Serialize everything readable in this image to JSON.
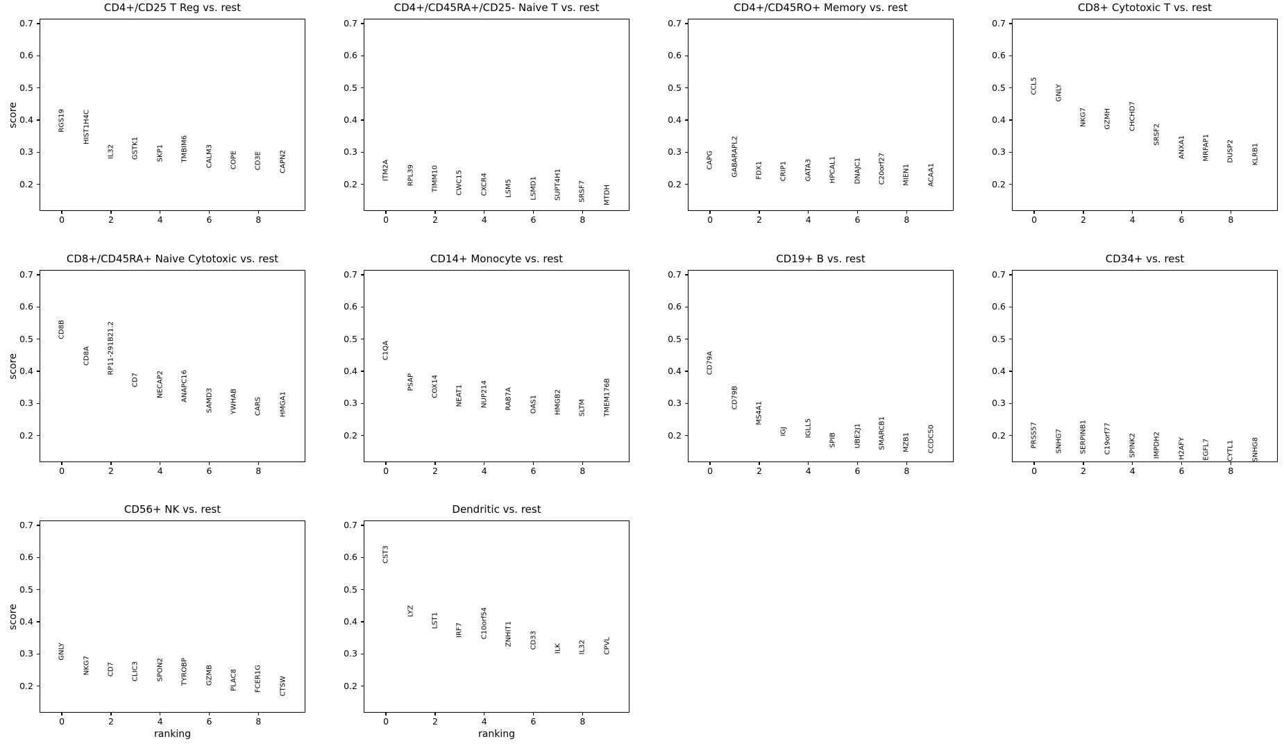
{
  "figure": {
    "background_color": "#ffffff",
    "text_color": "#000000",
    "spine_color": "#000000",
    "plots_per_row": 4,
    "shared_ylabel": "score",
    "shared_xlabel": "ranking"
  },
  "chart_data": [
    {
      "type": "scatter",
      "title": "CD4+/CD25 T Reg vs. rest",
      "ylabel": "score",
      "xlabel": "",
      "x": [
        0,
        1,
        2,
        3,
        4,
        5,
        6,
        7,
        8,
        9
      ],
      "gene_labels": [
        "RGS19",
        "HIST1H4C",
        "IL32",
        "GSTK1",
        "SKP1",
        "TMBIM6",
        "CALM3",
        "COPE",
        "CD3E",
        "CAPN2"
      ],
      "scores": [
        0.358,
        0.32,
        0.275,
        0.272,
        0.266,
        0.262,
        0.245,
        0.241,
        0.239,
        0.23
      ],
      "xlim": [
        -0.88,
        9.94
      ],
      "ylim": [
        0.115,
        0.713
      ],
      "xticks": [
        0,
        2,
        4,
        6,
        8
      ],
      "yticks": [
        0.7,
        0.6,
        0.5,
        0.4,
        0.3,
        0.2
      ],
      "grid": false,
      "legend": "none"
    },
    {
      "type": "scatter",
      "title": "CD4+/CD45RA+/CD25- Naive T vs. rest",
      "ylabel": "",
      "xlabel": "",
      "x": [
        0,
        1,
        2,
        3,
        4,
        5,
        6,
        7,
        8,
        9
      ],
      "gene_labels": [
        "ITM2A",
        "RPL39",
        "TIMM10",
        "CWC15",
        "CXCR4",
        "LSM5",
        "LSMD1",
        "SUPT4H1",
        "SRSF7",
        "MTDH"
      ],
      "scores": [
        0.205,
        0.19,
        0.17,
        0.162,
        0.159,
        0.155,
        0.147,
        0.145,
        0.139,
        0.131
      ],
      "xlim": [
        -0.88,
        9.94
      ],
      "ylim": [
        0.115,
        0.713
      ],
      "xticks": [
        0,
        2,
        4,
        6,
        8
      ],
      "yticks": [
        0.7,
        0.6,
        0.5,
        0.4,
        0.3,
        0.2
      ],
      "grid": false,
      "legend": "none"
    },
    {
      "type": "scatter",
      "title": "CD4+/CD45RO+ Memory vs. rest",
      "ylabel": "",
      "xlabel": "",
      "x": [
        0,
        1,
        2,
        3,
        4,
        5,
        6,
        7,
        8,
        9
      ],
      "gene_labels": [
        "CAPG",
        "GABARAPL2",
        "FDX1",
        "CRIP1",
        "GATA3",
        "HPCAL1",
        "DNAJC1",
        "C20orf27",
        "MIEN1",
        "ACAA1"
      ],
      "scores": [
        0.242,
        0.217,
        0.21,
        0.206,
        0.204,
        0.198,
        0.197,
        0.195,
        0.191,
        0.189
      ],
      "xlim": [
        -0.88,
        9.94
      ],
      "ylim": [
        0.115,
        0.713
      ],
      "xticks": [
        0,
        2,
        4,
        6,
        8
      ],
      "yticks": [
        0.7,
        0.6,
        0.5,
        0.4,
        0.3,
        0.2
      ],
      "grid": false,
      "legend": "none"
    },
    {
      "type": "scatter",
      "title": "CD8+ Cytotoxic T vs. rest",
      "ylabel": "",
      "xlabel": "",
      "x": [
        0,
        1,
        2,
        3,
        4,
        5,
        6,
        7,
        8,
        9
      ],
      "gene_labels": [
        "CCL5",
        "GNLY",
        "NKG7",
        "GZMH",
        "CHCHD7",
        "SRSF2",
        "ANXA1",
        "MRFAP1",
        "DUSP2",
        "KLRB1"
      ],
      "scores": [
        0.473,
        0.453,
        0.373,
        0.365,
        0.362,
        0.317,
        0.273,
        0.266,
        0.263,
        0.254
      ],
      "xlim": [
        -0.88,
        9.94
      ],
      "ylim": [
        0.115,
        0.713
      ],
      "xticks": [
        0,
        2,
        4,
        6,
        8
      ],
      "yticks": [
        0.7,
        0.6,
        0.5,
        0.4,
        0.3,
        0.2
      ],
      "grid": false,
      "legend": "none"
    },
    {
      "type": "scatter",
      "title": "CD8+/CD45RA+ Naive Cytotoxic vs. rest",
      "ylabel": "score",
      "xlabel": "",
      "x": [
        0,
        1,
        2,
        3,
        4,
        5,
        6,
        7,
        8,
        9
      ],
      "gene_labels": [
        "CD8B",
        "CD8A",
        "RP11-291B21.2",
        "CD7",
        "NECAP2",
        "ANAPC16",
        "SAMD3",
        "YWHAB",
        "CARS",
        "HMGA1"
      ],
      "scores": [
        0.495,
        0.414,
        0.384,
        0.347,
        0.312,
        0.298,
        0.267,
        0.262,
        0.257,
        0.254
      ],
      "xlim": [
        -0.88,
        9.94
      ],
      "ylim": [
        0.115,
        0.713
      ],
      "xticks": [
        0,
        2,
        4,
        6,
        8
      ],
      "yticks": [
        0.7,
        0.6,
        0.5,
        0.4,
        0.3,
        0.2
      ],
      "grid": false,
      "legend": "none"
    },
    {
      "type": "scatter",
      "title": "CD14+ Monocyte vs. rest",
      "ylabel": "",
      "xlabel": "",
      "x": [
        0,
        1,
        2,
        3,
        4,
        5,
        6,
        7,
        8,
        9
      ],
      "gene_labels": [
        "C1QA",
        "PSAP",
        "COX14",
        "NEAT1",
        "NUP214",
        "RAB7A",
        "OAS1",
        "HMGB2",
        "SLTM",
        "TMEM176B"
      ],
      "scores": [
        0.431,
        0.334,
        0.312,
        0.285,
        0.281,
        0.274,
        0.263,
        0.259,
        0.255,
        0.253
      ],
      "xlim": [
        -0.88,
        9.94
      ],
      "ylim": [
        0.115,
        0.713
      ],
      "xticks": [
        0,
        2,
        4,
        6,
        8
      ],
      "yticks": [
        0.7,
        0.6,
        0.5,
        0.4,
        0.3,
        0.2
      ],
      "grid": false,
      "legend": "none"
    },
    {
      "type": "scatter",
      "title": "CD19+ B vs. rest",
      "ylabel": "",
      "xlabel": "",
      "x": [
        0,
        1,
        2,
        3,
        4,
        5,
        6,
        7,
        8,
        9
      ],
      "gene_labels": [
        "CD79A",
        "CD79B",
        "MS4A1",
        "IGJ",
        "IGLL5",
        "SPIB",
        "UBE2J1",
        "SMARCB1",
        "MZB1",
        "CCDC50"
      ],
      "scores": [
        0.385,
        0.276,
        0.229,
        0.193,
        0.187,
        0.157,
        0.155,
        0.151,
        0.144,
        0.141
      ],
      "xlim": [
        -0.88,
        9.94
      ],
      "ylim": [
        0.115,
        0.713
      ],
      "xticks": [
        0,
        2,
        4,
        6,
        8
      ],
      "yticks": [
        0.7,
        0.6,
        0.5,
        0.4,
        0.3,
        0.2
      ],
      "grid": false,
      "legend": "none"
    },
    {
      "type": "scatter",
      "title": "CD34+ vs. rest",
      "ylabel": "",
      "xlabel": "",
      "x": [
        0,
        1,
        2,
        3,
        4,
        5,
        6,
        7,
        8,
        9
      ],
      "gene_labels": [
        "PRSS57",
        "SNHG7",
        "SERPINB1",
        "C19orf77",
        "SPINK2",
        "IMPDH2",
        "H2AFY",
        "EGFL7",
        "CYTL1",
        "SNHG8"
      ],
      "scores": [
        0.155,
        0.141,
        0.138,
        0.137,
        0.127,
        0.123,
        0.12,
        0.117,
        0.114,
        0.113
      ],
      "xlim": [
        -0.88,
        9.94
      ],
      "ylim": [
        0.115,
        0.713
      ],
      "xticks": [
        0,
        2,
        4,
        6,
        8
      ],
      "yticks": [
        0.7,
        0.6,
        0.5,
        0.4,
        0.3,
        0.2
      ],
      "grid": false,
      "legend": "none"
    },
    {
      "type": "scatter",
      "title": "CD56+ NK vs. rest",
      "ylabel": "score",
      "xlabel": "ranking",
      "x": [
        0,
        1,
        2,
        3,
        4,
        5,
        6,
        7,
        8,
        9
      ],
      "gene_labels": [
        "GNLY",
        "NKG7",
        "CD7",
        "CLIC3",
        "SPON2",
        "TYROBP",
        "GZMB",
        "PLAC8",
        "FCER1G",
        "CTSW"
      ],
      "scores": [
        0.276,
        0.23,
        0.225,
        0.211,
        0.209,
        0.198,
        0.197,
        0.18,
        0.176,
        0.165
      ],
      "xlim": [
        -0.88,
        9.94
      ],
      "ylim": [
        0.115,
        0.713
      ],
      "xticks": [
        0,
        2,
        4,
        6,
        8
      ],
      "yticks": [
        0.7,
        0.6,
        0.5,
        0.4,
        0.3,
        0.2
      ],
      "grid": false,
      "legend": "none"
    },
    {
      "type": "scatter",
      "title": "Dendritic vs. rest",
      "ylabel": "",
      "xlabel": "ranking",
      "x": [
        0,
        1,
        2,
        3,
        4,
        5,
        6,
        7,
        8,
        9
      ],
      "gene_labels": [
        "CST3",
        "LYZ",
        "LST1",
        "IRF7",
        "C10orf54",
        "ZNHIT1",
        "CD33",
        "ILK",
        "IL32",
        "CPVL"
      ],
      "scores": [
        0.577,
        0.41,
        0.374,
        0.347,
        0.341,
        0.317,
        0.308,
        0.297,
        0.294,
        0.293
      ],
      "xlim": [
        -0.88,
        9.94
      ],
      "ylim": [
        0.115,
        0.713
      ],
      "xticks": [
        0,
        2,
        4,
        6,
        8
      ],
      "yticks": [
        0.7,
        0.6,
        0.5,
        0.4,
        0.3,
        0.2
      ],
      "grid": false,
      "legend": "none"
    }
  ]
}
